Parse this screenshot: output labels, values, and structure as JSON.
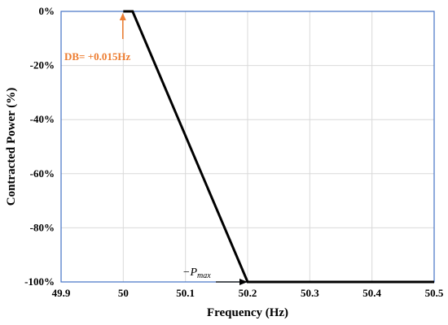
{
  "chart_data": {
    "type": "line",
    "title": "",
    "xlabel": "Frequency (Hz)",
    "ylabel": "Contracted Power (%)",
    "xlim": [
      49.9,
      50.5
    ],
    "ylim": [
      -100,
      0
    ],
    "x_ticks": [
      "49.9",
      "50",
      "50.1",
      "50.2",
      "50.3",
      "50.4",
      "50.5"
    ],
    "y_ticks": [
      "0%",
      "-20%",
      "-40%",
      "-60%",
      "-80%",
      "-100%"
    ],
    "grid": true,
    "series": [
      {
        "x": [
          50.0,
          50.015,
          50.2,
          50.5
        ],
        "y": [
          0,
          0,
          -100,
          -100
        ],
        "color": "#000000"
      }
    ],
    "annotations": {
      "deadband": {
        "label": "DB= +0.015Hz",
        "color": "#ED7D31",
        "x": 50.015,
        "y": 0
      },
      "pmax": {
        "prefix": "−",
        "symbol": "P",
        "subscript": "max",
        "x": 50.2,
        "y": -100
      }
    },
    "colors": {
      "grid": "#d9d9d9",
      "plot_border": "#4472C4",
      "line": "#000000",
      "annotation": "#ED7D31"
    }
  }
}
